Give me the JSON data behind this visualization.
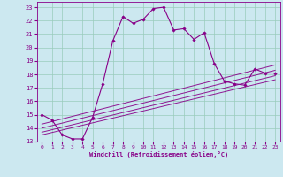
{
  "xlabel": "Windchill (Refroidissement éolien,°C)",
  "bg_color": "#cce8f0",
  "line_color": "#880088",
  "grid_color": "#99ccbb",
  "xlim": [
    -0.5,
    23.5
  ],
  "ylim": [
    13,
    23.4
  ],
  "xticks": [
    0,
    1,
    2,
    3,
    4,
    5,
    6,
    7,
    8,
    9,
    10,
    11,
    12,
    13,
    14,
    15,
    16,
    17,
    18,
    19,
    20,
    21,
    22,
    23
  ],
  "yticks": [
    13,
    14,
    15,
    16,
    17,
    18,
    19,
    20,
    21,
    22,
    23
  ],
  "series": [
    [
      0,
      15.0
    ],
    [
      1,
      14.6
    ],
    [
      2,
      13.5
    ],
    [
      3,
      13.2
    ],
    [
      4,
      13.2
    ],
    [
      5,
      14.8
    ],
    [
      6,
      17.3
    ],
    [
      7,
      20.5
    ],
    [
      8,
      22.3
    ],
    [
      9,
      21.8
    ],
    [
      10,
      22.1
    ],
    [
      11,
      22.9
    ],
    [
      12,
      23.0
    ],
    [
      13,
      21.3
    ],
    [
      14,
      21.4
    ],
    [
      15,
      20.6
    ],
    [
      16,
      21.1
    ],
    [
      17,
      18.8
    ],
    [
      18,
      17.5
    ],
    [
      19,
      17.3
    ],
    [
      20,
      17.2
    ],
    [
      21,
      18.4
    ],
    [
      22,
      18.1
    ],
    [
      23,
      18.1
    ]
  ],
  "diagonal_lines": [
    {
      "x": [
        0,
        23
      ],
      "y": [
        13.5,
        17.6
      ]
    },
    {
      "x": [
        0,
        23
      ],
      "y": [
        13.7,
        17.9
      ]
    },
    {
      "x": [
        0,
        23
      ],
      "y": [
        14.0,
        18.3
      ]
    },
    {
      "x": [
        0,
        23
      ],
      "y": [
        14.3,
        18.7
      ]
    }
  ]
}
